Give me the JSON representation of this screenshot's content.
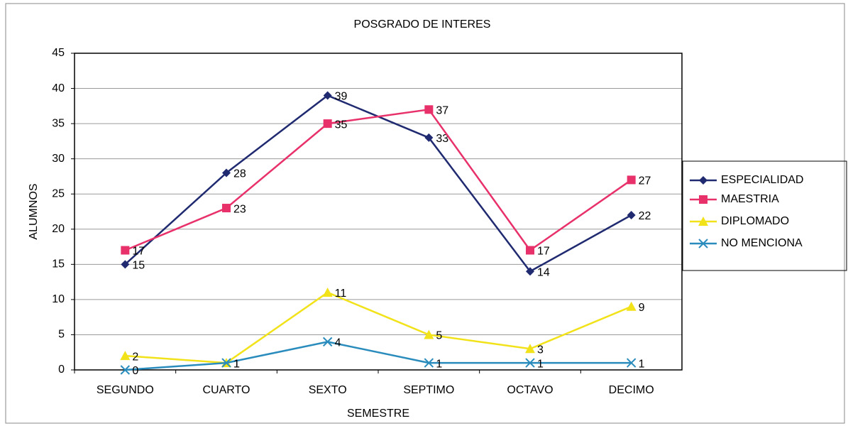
{
  "chart_data": {
    "type": "line",
    "title": "POSGRADO DE INTERES",
    "x_label": "SEMESTRE",
    "y_label": "ALUMNOS",
    "categories": [
      "SEGUNDO",
      "CUARTO",
      "SEXTO",
      "SEPTIMO",
      "OCTAVO",
      "DECIMO"
    ],
    "series": [
      {
        "name": "ESPECIALIDAD",
        "color": "#1f2a70",
        "marker": "diamond",
        "values": [
          15,
          28,
          39,
          33,
          14,
          22
        ]
      },
      {
        "name": "MAESTRIA",
        "color": "#e8306a",
        "marker": "square",
        "values": [
          17,
          23,
          35,
          37,
          17,
          27
        ]
      },
      {
        "name": "DIPLOMADO",
        "color": "#f2e21a",
        "marker": "triangle",
        "values": [
          2,
          1,
          11,
          5,
          3,
          9
        ]
      },
      {
        "name": "NO MENCIONA",
        "color": "#2a8cbc",
        "marker": "x",
        "values": [
          0,
          1,
          4,
          1,
          1,
          1
        ]
      }
    ],
    "ylim": [
      0,
      45
    ],
    "yticks": [
      0,
      5,
      10,
      15,
      20,
      25,
      30,
      35,
      40,
      45
    ],
    "grid": true,
    "legend": "right"
  }
}
